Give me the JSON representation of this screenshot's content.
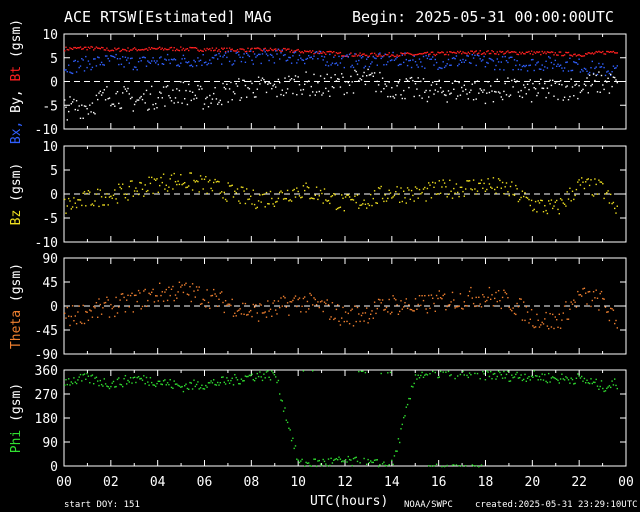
{
  "header": {
    "title": "ACE RTSW[Estimated] MAG",
    "begin": "Begin: 2025-05-31 00:00:00UTC"
  },
  "footer": {
    "start_doy": "start DOY: 151",
    "xlabel": "UTC(hours)",
    "source": "NOAA/SWPC",
    "created": "created:2025-05-31 23:29:10UTC"
  },
  "colors": {
    "bt": "#ff2020",
    "bx": "#ffffff",
    "by": "#3060ff",
    "bz": "#f0e020",
    "theta": "#f08030",
    "phi": "#30e030",
    "axis": "#ffffff",
    "background": "#000000"
  },
  "chart_data": [
    {
      "type": "scatter",
      "ylabel_parts": [
        "Bx,",
        "By,",
        "Bt",
        "(gsm)"
      ],
      "ylim": [
        -10,
        10
      ],
      "yticks": [
        "10",
        "5",
        "0",
        "-5",
        "-10"
      ],
      "xlim": [
        0,
        24
      ],
      "xticks": [
        "00",
        "02",
        "04",
        "06",
        "08",
        "10",
        "12",
        "14",
        "16",
        "18",
        "20",
        "22",
        "00"
      ],
      "zero_line": true,
      "series": [
        {
          "name": "Bt",
          "color_key": "bt",
          "x": [
            0,
            1,
            2,
            3,
            4,
            5,
            6,
            7,
            8,
            9,
            10,
            11,
            12,
            13,
            14,
            15,
            16,
            17,
            18,
            19,
            20,
            21,
            22,
            23,
            23.5
          ],
          "y": [
            7.0,
            7.2,
            6.8,
            6.9,
            7.0,
            7.0,
            6.9,
            6.8,
            6.8,
            6.8,
            6.5,
            6.3,
            5.8,
            5.7,
            5.8,
            5.8,
            6.0,
            6.2,
            6.3,
            6.2,
            6.2,
            6.0,
            5.8,
            6.2,
            6.5
          ],
          "spread": 0.4
        },
        {
          "name": "By",
          "color_key": "by",
          "x": [
            0,
            1,
            2,
            3,
            4,
            5,
            6,
            7,
            8,
            9,
            10,
            11,
            12,
            13,
            14,
            15,
            16,
            17,
            18,
            19,
            20,
            21,
            22,
            23,
            23.5
          ],
          "y": [
            3.0,
            4.0,
            4.5,
            4.0,
            4.5,
            4.5,
            4.8,
            5.0,
            5.2,
            5.5,
            5.3,
            5.0,
            4.5,
            4.5,
            4.8,
            4.5,
            4.2,
            4.5,
            4.2,
            4.0,
            3.8,
            4.0,
            3.5,
            2.5,
            2.5
          ],
          "spread": 1.5
        },
        {
          "name": "Bx",
          "color_key": "bx",
          "x": [
            0,
            1,
            2,
            3,
            4,
            5,
            6,
            7,
            8,
            9,
            10,
            11,
            12,
            13,
            14,
            15,
            16,
            17,
            18,
            19,
            20,
            21,
            22,
            23,
            23.5
          ],
          "y": [
            -5.5,
            -5.0,
            -2.5,
            -4.0,
            -3.0,
            -2.0,
            -3.5,
            -2.0,
            -1.0,
            -1.5,
            0.0,
            -1.0,
            0.0,
            0.5,
            -1.0,
            -1.5,
            -2.0,
            -1.5,
            -2.0,
            -1.5,
            -2.0,
            -1.5,
            -1.0,
            0.0,
            -0.5
          ],
          "spread": 2.5
        }
      ]
    },
    {
      "type": "scatter",
      "ylabel_parts": [
        "Bz",
        "(gsm)"
      ],
      "ylim": [
        -10,
        10
      ],
      "yticks": [
        "10",
        "5",
        "0",
        "-5",
        "-10"
      ],
      "xlim": [
        0,
        24
      ],
      "zero_line": true,
      "series": [
        {
          "name": "Bz",
          "color_key": "bz",
          "x": [
            0,
            1,
            2,
            3,
            4,
            5,
            6,
            7,
            8,
            9,
            10,
            11,
            12,
            13,
            14,
            15,
            16,
            17,
            18,
            19,
            20,
            21,
            22,
            23,
            23.5
          ],
          "y": [
            -2.5,
            -1.0,
            0.0,
            1.0,
            2.5,
            3.0,
            2.0,
            0.5,
            -1.0,
            -0.5,
            1.0,
            0.0,
            -2.0,
            -1.0,
            0.5,
            0.0,
            1.0,
            1.5,
            2.0,
            1.0,
            -2.0,
            -3.0,
            2.0,
            1.0,
            -3.0
          ],
          "spread": 2.0
        }
      ]
    },
    {
      "type": "scatter",
      "ylabel_parts": [
        "Theta",
        "(gsm)"
      ],
      "ylim": [
        -90,
        90
      ],
      "yticks": [
        "90",
        "45",
        "0",
        "-45",
        "-90"
      ],
      "xlim": [
        0,
        24
      ],
      "zero_line": true,
      "series": [
        {
          "name": "Theta",
          "color_key": "theta",
          "x": [
            0,
            1,
            2,
            3,
            4,
            5,
            6,
            7,
            8,
            9,
            10,
            11,
            12,
            13,
            14,
            15,
            16,
            17,
            18,
            19,
            20,
            21,
            22,
            23,
            23.5
          ],
          "y": [
            -20,
            -10,
            0,
            10,
            25,
            30,
            20,
            5,
            -10,
            -5,
            10,
            0,
            -20,
            -10,
            5,
            0,
            10,
            15,
            20,
            10,
            -20,
            -30,
            20,
            10,
            -30
          ],
          "spread": 20
        }
      ]
    },
    {
      "type": "scatter",
      "ylabel_parts": [
        "Phi",
        "(gsm)"
      ],
      "ylim": [
        0,
        360
      ],
      "yticks": [
        "360",
        "270",
        "180",
        "90",
        "0"
      ],
      "xlim": [
        0,
        24
      ],
      "zero_line": false,
      "series": [
        {
          "name": "Phi",
          "color_key": "phi",
          "x": [
            0,
            1,
            2,
            3,
            4,
            5,
            6,
            7,
            8,
            9,
            10,
            11,
            12,
            13,
            14,
            15,
            16,
            17,
            18,
            19,
            20,
            21,
            22,
            23,
            23.5
          ],
          "y": [
            320,
            330,
            310,
            330,
            320,
            300,
            310,
            320,
            340,
            345,
            10,
            15,
            20,
            10,
            5,
            345,
            350,
            350,
            345,
            340,
            340,
            330,
            330,
            300,
            310
          ],
          "spread": 20
        }
      ]
    }
  ]
}
